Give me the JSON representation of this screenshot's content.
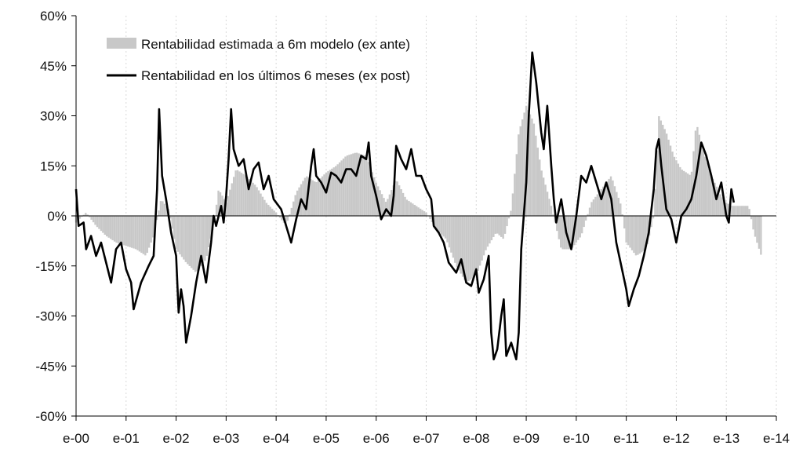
{
  "chart_data": {
    "type": "bar+line",
    "title": "",
    "xlabel": "",
    "ylabel": "",
    "ylim": [
      -60,
      60
    ],
    "xlim": [
      2000,
      2014
    ],
    "y_ticks": [
      60,
      45,
      30,
      15,
      0,
      -15,
      -30,
      -45,
      -60
    ],
    "y_tick_labels": [
      "60%",
      "45%",
      "30%",
      "15%",
      "0%",
      "-15%",
      "-30%",
      "-45%",
      "-60%"
    ],
    "x_ticks": [
      2000,
      2001,
      2002,
      2003,
      2004,
      2005,
      2006,
      2007,
      2008,
      2009,
      2010,
      2011,
      2012,
      2013,
      2014
    ],
    "x_tick_labels": [
      "e-00",
      "e-01",
      "e-02",
      "e-03",
      "e-04",
      "e-05",
      "e-06",
      "e-07",
      "e-08",
      "e-09",
      "e-10",
      "e-11",
      "e-12",
      "e-13",
      "e-14"
    ],
    "grid": {
      "vertical": true,
      "horizontal": false
    },
    "legend_position": "top-left",
    "colors": {
      "bars": "#c8c8c8",
      "line": "#000000",
      "grid": "#d9d9d9"
    },
    "series": [
      {
        "name": "Rentabilidad estimada a 6m modelo (ex ante)",
        "kind": "bar",
        "points": [
          [
            2000.0,
            -2
          ],
          [
            2000.2,
            1
          ],
          [
            2000.4,
            -3
          ],
          [
            2000.6,
            -6
          ],
          [
            2000.8,
            -8
          ],
          [
            2001.0,
            -9
          ],
          [
            2001.2,
            -10
          ],
          [
            2001.4,
            -12
          ],
          [
            2001.55,
            -6
          ],
          [
            2001.7,
            5
          ],
          [
            2001.85,
            2
          ],
          [
            2002.0,
            -10
          ],
          [
            2002.2,
            -14
          ],
          [
            2002.4,
            -17
          ],
          [
            2002.6,
            -13
          ],
          [
            2002.75,
            -3
          ],
          [
            2002.85,
            8
          ],
          [
            2003.0,
            4
          ],
          [
            2003.2,
            14
          ],
          [
            2003.4,
            12
          ],
          [
            2003.6,
            9
          ],
          [
            2003.8,
            4
          ],
          [
            2004.0,
            1
          ],
          [
            2004.2,
            -3
          ],
          [
            2004.4,
            7
          ],
          [
            2004.6,
            12
          ],
          [
            2004.8,
            10
          ],
          [
            2005.0,
            13
          ],
          [
            2005.2,
            15
          ],
          [
            2005.4,
            18
          ],
          [
            2005.6,
            19
          ],
          [
            2005.8,
            18
          ],
          [
            2006.0,
            10
          ],
          [
            2006.2,
            4
          ],
          [
            2006.4,
            11
          ],
          [
            2006.6,
            5
          ],
          [
            2006.8,
            3
          ],
          [
            2007.0,
            1
          ],
          [
            2007.2,
            -4
          ],
          [
            2007.4,
            -7
          ],
          [
            2007.6,
            -15
          ],
          [
            2007.8,
            -20
          ],
          [
            2008.0,
            -18
          ],
          [
            2008.2,
            -10
          ],
          [
            2008.4,
            -5
          ],
          [
            2008.55,
            -7
          ],
          [
            2008.7,
            2
          ],
          [
            2008.85,
            25
          ],
          [
            2009.0,
            33
          ],
          [
            2009.15,
            28
          ],
          [
            2009.3,
            14
          ],
          [
            2009.5,
            3
          ],
          [
            2009.7,
            -10
          ],
          [
            2009.9,
            -10
          ],
          [
            2010.1,
            -6
          ],
          [
            2010.3,
            4
          ],
          [
            2010.5,
            8
          ],
          [
            2010.7,
            12
          ],
          [
            2010.9,
            3
          ],
          [
            2011.0,
            -8
          ],
          [
            2011.2,
            -12
          ],
          [
            2011.4,
            -10
          ],
          [
            2011.55,
            0
          ],
          [
            2011.65,
            30
          ],
          [
            2011.8,
            25
          ],
          [
            2011.95,
            18
          ],
          [
            2012.1,
            14
          ],
          [
            2012.3,
            12
          ],
          [
            2012.4,
            28
          ],
          [
            2012.55,
            19
          ],
          [
            2012.7,
            12
          ],
          [
            2012.9,
            6
          ],
          [
            2013.0,
            4
          ],
          [
            2013.1,
            3
          ],
          [
            2013.3,
            3
          ],
          [
            2013.45,
            3
          ],
          [
            2013.55,
            -5
          ],
          [
            2013.7,
            -12
          ]
        ]
      },
      {
        "name": "Rentabilidad en los últimos 6 meses (ex post)",
        "kind": "line",
        "points": [
          [
            2000.0,
            8
          ],
          [
            2000.05,
            -3
          ],
          [
            2000.15,
            -2
          ],
          [
            2000.2,
            -10
          ],
          [
            2000.3,
            -6
          ],
          [
            2000.4,
            -12
          ],
          [
            2000.5,
            -8
          ],
          [
            2000.55,
            -11
          ],
          [
            2000.6,
            -14
          ],
          [
            2000.7,
            -20
          ],
          [
            2000.8,
            -10
          ],
          [
            2000.9,
            -8
          ],
          [
            2001.0,
            -16
          ],
          [
            2001.1,
            -20
          ],
          [
            2001.15,
            -28
          ],
          [
            2001.3,
            -20
          ],
          [
            2001.45,
            -15
          ],
          [
            2001.55,
            -12
          ],
          [
            2001.62,
            8
          ],
          [
            2001.66,
            32
          ],
          [
            2001.72,
            12
          ],
          [
            2001.8,
            5
          ],
          [
            2001.9,
            -5
          ],
          [
            2002.0,
            -12
          ],
          [
            2002.05,
            -29
          ],
          [
            2002.1,
            -22
          ],
          [
            2002.15,
            -27
          ],
          [
            2002.2,
            -38
          ],
          [
            2002.3,
            -30
          ],
          [
            2002.4,
            -20
          ],
          [
            2002.5,
            -12
          ],
          [
            2002.6,
            -20
          ],
          [
            2002.65,
            -14
          ],
          [
            2002.7,
            -8
          ],
          [
            2002.75,
            0
          ],
          [
            2002.8,
            -3
          ],
          [
            2002.9,
            3
          ],
          [
            2002.95,
            -2
          ],
          [
            2003.0,
            6
          ],
          [
            2003.05,
            17
          ],
          [
            2003.1,
            32
          ],
          [
            2003.15,
            20
          ],
          [
            2003.25,
            15
          ],
          [
            2003.35,
            17
          ],
          [
            2003.45,
            8
          ],
          [
            2003.55,
            14
          ],
          [
            2003.65,
            16
          ],
          [
            2003.75,
            8
          ],
          [
            2003.85,
            12
          ],
          [
            2003.95,
            5
          ],
          [
            2004.1,
            2
          ],
          [
            2004.2,
            -3
          ],
          [
            2004.3,
            -8
          ],
          [
            2004.4,
            -1
          ],
          [
            2004.5,
            5
          ],
          [
            2004.6,
            2
          ],
          [
            2004.7,
            15
          ],
          [
            2004.75,
            20
          ],
          [
            2004.8,
            12
          ],
          [
            2004.9,
            10
          ],
          [
            2005.0,
            7
          ],
          [
            2005.1,
            13
          ],
          [
            2005.2,
            12
          ],
          [
            2005.3,
            10
          ],
          [
            2005.4,
            14
          ],
          [
            2005.5,
            14
          ],
          [
            2005.6,
            12
          ],
          [
            2005.7,
            18
          ],
          [
            2005.8,
            17
          ],
          [
            2005.85,
            22
          ],
          [
            2005.9,
            12
          ],
          [
            2006.0,
            6
          ],
          [
            2006.1,
            -1
          ],
          [
            2006.2,
            2
          ],
          [
            2006.3,
            0
          ],
          [
            2006.35,
            6
          ],
          [
            2006.4,
            21
          ],
          [
            2006.5,
            17
          ],
          [
            2006.6,
            14
          ],
          [
            2006.7,
            20
          ],
          [
            2006.8,
            12
          ],
          [
            2006.9,
            12
          ],
          [
            2007.0,
            8
          ],
          [
            2007.1,
            5
          ],
          [
            2007.15,
            -3
          ],
          [
            2007.25,
            -5
          ],
          [
            2007.35,
            -8
          ],
          [
            2007.45,
            -14
          ],
          [
            2007.6,
            -17
          ],
          [
            2007.7,
            -13
          ],
          [
            2007.8,
            -20
          ],
          [
            2007.9,
            -21
          ],
          [
            2008.0,
            -16
          ],
          [
            2008.05,
            -23
          ],
          [
            2008.15,
            -19
          ],
          [
            2008.25,
            -12
          ],
          [
            2008.3,
            -35
          ],
          [
            2008.35,
            -43
          ],
          [
            2008.42,
            -40
          ],
          [
            2008.5,
            -30
          ],
          [
            2008.55,
            -25
          ],
          [
            2008.6,
            -42
          ],
          [
            2008.7,
            -38
          ],
          [
            2008.8,
            -43
          ],
          [
            2008.85,
            -35
          ],
          [
            2008.9,
            -10
          ],
          [
            2008.95,
            0
          ],
          [
            2009.0,
            10
          ],
          [
            2009.05,
            30
          ],
          [
            2009.12,
            49
          ],
          [
            2009.2,
            40
          ],
          [
            2009.3,
            25
          ],
          [
            2009.35,
            20
          ],
          [
            2009.42,
            33
          ],
          [
            2009.5,
            15
          ],
          [
            2009.55,
            5
          ],
          [
            2009.6,
            -2
          ],
          [
            2009.7,
            5
          ],
          [
            2009.8,
            -5
          ],
          [
            2009.9,
            -10
          ],
          [
            2010.0,
            0
          ],
          [
            2010.1,
            12
          ],
          [
            2010.2,
            10
          ],
          [
            2010.3,
            15
          ],
          [
            2010.4,
            10
          ],
          [
            2010.5,
            5
          ],
          [
            2010.6,
            10
          ],
          [
            2010.7,
            5
          ],
          [
            2010.8,
            -8
          ],
          [
            2010.9,
            -15
          ],
          [
            2011.0,
            -22
          ],
          [
            2011.05,
            -27
          ],
          [
            2011.15,
            -22
          ],
          [
            2011.25,
            -18
          ],
          [
            2011.35,
            -12
          ],
          [
            2011.45,
            -5
          ],
          [
            2011.55,
            8
          ],
          [
            2011.6,
            20
          ],
          [
            2011.65,
            23
          ],
          [
            2011.7,
            15
          ],
          [
            2011.8,
            2
          ],
          [
            2011.9,
            -1
          ],
          [
            2012.0,
            -8
          ],
          [
            2012.1,
            0
          ],
          [
            2012.2,
            2
          ],
          [
            2012.3,
            5
          ],
          [
            2012.4,
            12
          ],
          [
            2012.5,
            22
          ],
          [
            2012.6,
            18
          ],
          [
            2012.7,
            12
          ],
          [
            2012.8,
            5
          ],
          [
            2012.9,
            10
          ],
          [
            2013.0,
            0
          ],
          [
            2013.05,
            -2
          ],
          [
            2013.1,
            8
          ],
          [
            2013.15,
            4
          ]
        ]
      }
    ]
  }
}
